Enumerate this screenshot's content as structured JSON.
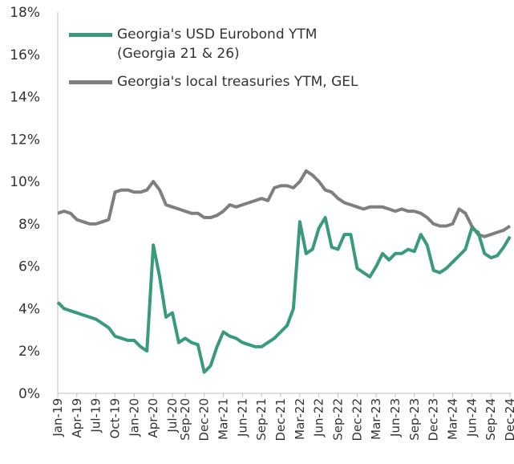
{
  "chart_data": {
    "type": "line",
    "categories": [
      "Jan-19",
      null,
      null,
      "Apr-19",
      null,
      null,
      "Jul-19",
      null,
      null,
      "Oct-19",
      null,
      null,
      "Jan-20",
      null,
      null,
      "Apr-20",
      null,
      null,
      "Jul-20",
      null,
      "Sep-20",
      null,
      null,
      "Dec-20",
      null,
      null,
      "Mar-21",
      null,
      null,
      "Jun-21",
      null,
      null,
      "Sep-21",
      null,
      null,
      "Dec-21",
      null,
      null,
      "Mar-22",
      null,
      null,
      "Jun-22",
      null,
      null,
      "Sep-22",
      null,
      null,
      "Dec-22",
      null,
      null,
      "Mar-23",
      null,
      null,
      "Jun-23",
      null,
      null,
      "Sep-23",
      null,
      null,
      "Dec-23",
      null,
      null,
      "Mar-24",
      null,
      null,
      "Jun-24",
      null,
      null,
      "Sep-24",
      null,
      null,
      "Dec-24"
    ],
    "series": [
      {
        "name": "Georgia's USD Eurobond YTM (Georgia 21 & 26)",
        "color": "#3a9a7e",
        "values": [
          4.3,
          4.0,
          3.9,
          3.8,
          3.7,
          3.6,
          3.5,
          3.3,
          3.1,
          2.7,
          2.6,
          2.5,
          2.5,
          2.2,
          2.0,
          7.0,
          5.5,
          3.6,
          3.8,
          2.4,
          2.6,
          2.4,
          2.3,
          1.0,
          1.3,
          2.2,
          2.9,
          2.7,
          2.6,
          2.4,
          2.3,
          2.2,
          2.2,
          2.4,
          2.6,
          2.9,
          3.2,
          4.0,
          8.1,
          6.6,
          6.8,
          7.8,
          8.3,
          6.9,
          6.8,
          7.5,
          7.5,
          5.9,
          5.7,
          5.5,
          6.0,
          6.6,
          6.3,
          6.6,
          6.6,
          6.8,
          6.7,
          7.5,
          7.0,
          5.8,
          5.7,
          5.9,
          6.2,
          6.5,
          6.8,
          7.8,
          7.6,
          6.6,
          6.4,
          6.5,
          6.9,
          7.4
        ]
      },
      {
        "name": "Georgia's local treasuries YTM, GEL",
        "color": "#7f7f7f",
        "values": [
          8.5,
          8.6,
          8.5,
          8.2,
          8.1,
          8.0,
          8.0,
          8.1,
          8.2,
          9.5,
          9.6,
          9.6,
          9.5,
          9.5,
          9.6,
          10.0,
          9.6,
          8.9,
          8.8,
          8.7,
          8.6,
          8.5,
          8.5,
          8.3,
          8.3,
          8.4,
          8.6,
          8.9,
          8.8,
          8.9,
          9.0,
          9.1,
          9.2,
          9.1,
          9.7,
          9.8,
          9.8,
          9.7,
          10.0,
          10.5,
          10.3,
          10.0,
          9.6,
          9.5,
          9.2,
          9.0,
          8.9,
          8.8,
          8.7,
          8.8,
          8.8,
          8.8,
          8.7,
          8.6,
          8.7,
          8.6,
          8.6,
          8.5,
          8.3,
          8.0,
          7.9,
          7.9,
          8.0,
          8.7,
          8.5,
          7.9,
          7.5,
          7.4,
          7.5,
          7.6,
          7.7,
          7.9
        ]
      }
    ],
    "ylim": [
      0,
      18
    ],
    "yticks": [
      {
        "value": 0,
        "label": "0%"
      },
      {
        "value": 2,
        "label": "2%"
      },
      {
        "value": 4,
        "label": "4%"
      },
      {
        "value": 6,
        "label": "6%"
      },
      {
        "value": 8,
        "label": "8%"
      },
      {
        "value": 10,
        "label": "10%"
      },
      {
        "value": 12,
        "label": "12%"
      },
      {
        "value": 14,
        "label": "14%"
      },
      {
        "value": 16,
        "label": "16%"
      },
      {
        "value": 18,
        "label": "18%"
      }
    ],
    "grid": false,
    "legend": "upper left"
  }
}
